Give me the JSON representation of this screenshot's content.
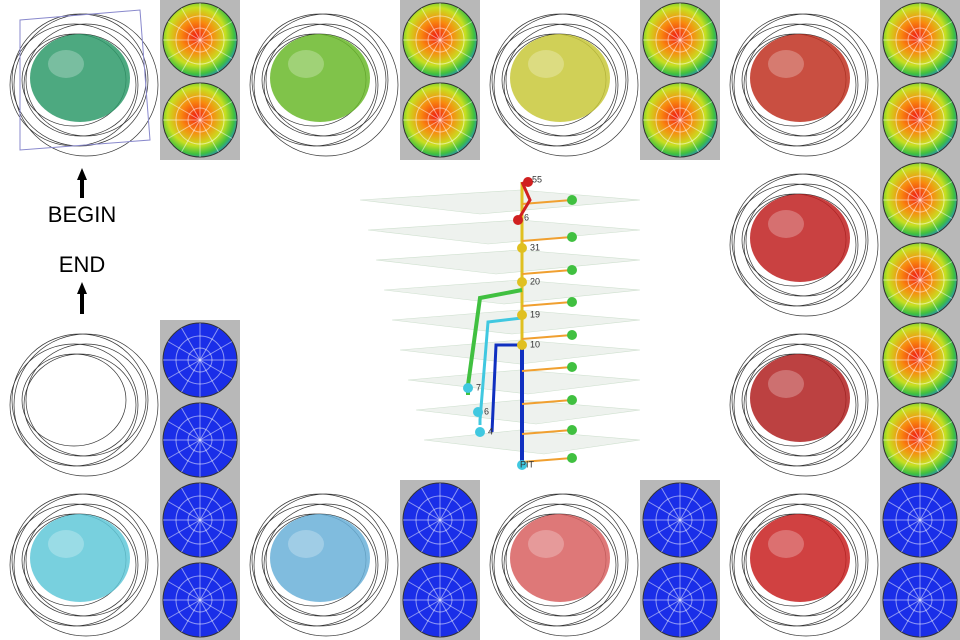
{
  "labels": {
    "begin": "BEGIN",
    "end": "END"
  },
  "tree": {
    "node_labels": [
      "55",
      "6",
      "31",
      "20",
      "19",
      "10",
      "7",
      "6",
      "4",
      "PIT"
    ]
  }
}
